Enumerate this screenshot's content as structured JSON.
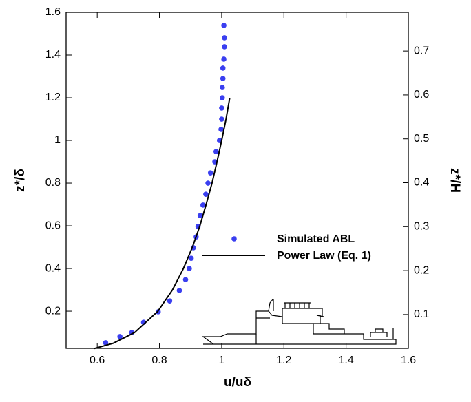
{
  "chart_data": {
    "type": "scatter",
    "x_label": "u/uδ",
    "y_label": "z*/δ",
    "y2_label": "z*/H",
    "xlim": [
      0.5,
      1.6
    ],
    "xticks": [
      0.6,
      0.8,
      1,
      1.2,
      1.4,
      1.6
    ],
    "ylim": [
      0.026,
      1.6
    ],
    "yticks": [
      0.2,
      0.4,
      0.6,
      0.8,
      1,
      1.2,
      1.4,
      1.6
    ],
    "y2lim": [
      0.023,
      0.788
    ],
    "y2ticks": [
      0.1,
      0.2,
      0.3,
      0.4,
      0.5,
      0.6,
      0.7
    ],
    "legend": "center-right",
    "series": [
      {
        "name": "Simulated ABL",
        "type": "scatter",
        "color": "#3a3ff0",
        "x": [
          0.627,
          0.673,
          0.711,
          0.749,
          0.796,
          0.833,
          0.864,
          0.884,
          0.896,
          0.902,
          0.909,
          0.918,
          0.924,
          0.931,
          0.94,
          0.949,
          0.956,
          0.964,
          0.978,
          0.982,
          0.993,
          0.998,
          1.0,
          1.0,
          1.002,
          1.002,
          1.004,
          1.004,
          1.007,
          1.009,
          1.009,
          1.007
        ],
        "values": [
          0.052,
          0.081,
          0.1,
          0.148,
          0.197,
          0.248,
          0.297,
          0.348,
          0.4,
          0.448,
          0.497,
          0.548,
          0.597,
          0.648,
          0.697,
          0.748,
          0.8,
          0.848,
          0.9,
          0.948,
          1.0,
          1.052,
          1.1,
          1.152,
          1.2,
          1.248,
          1.29,
          1.339,
          1.381,
          1.439,
          1.481,
          1.539
        ]
      },
      {
        "name": "Power Law (Eq. 1)",
        "type": "line",
        "color": "#000000",
        "x": [
          0.59,
          0.652,
          0.72,
          0.795,
          0.842,
          0.877,
          0.906,
          0.93,
          0.95,
          0.969,
          0.985,
          1.0,
          1.014,
          1.026
        ],
        "values": [
          0.025,
          0.05,
          0.1,
          0.2,
          0.3,
          0.4,
          0.5,
          0.6,
          0.7,
          0.8,
          0.9,
          1.0,
          1.1,
          1.2
        ]
      }
    ]
  }
}
